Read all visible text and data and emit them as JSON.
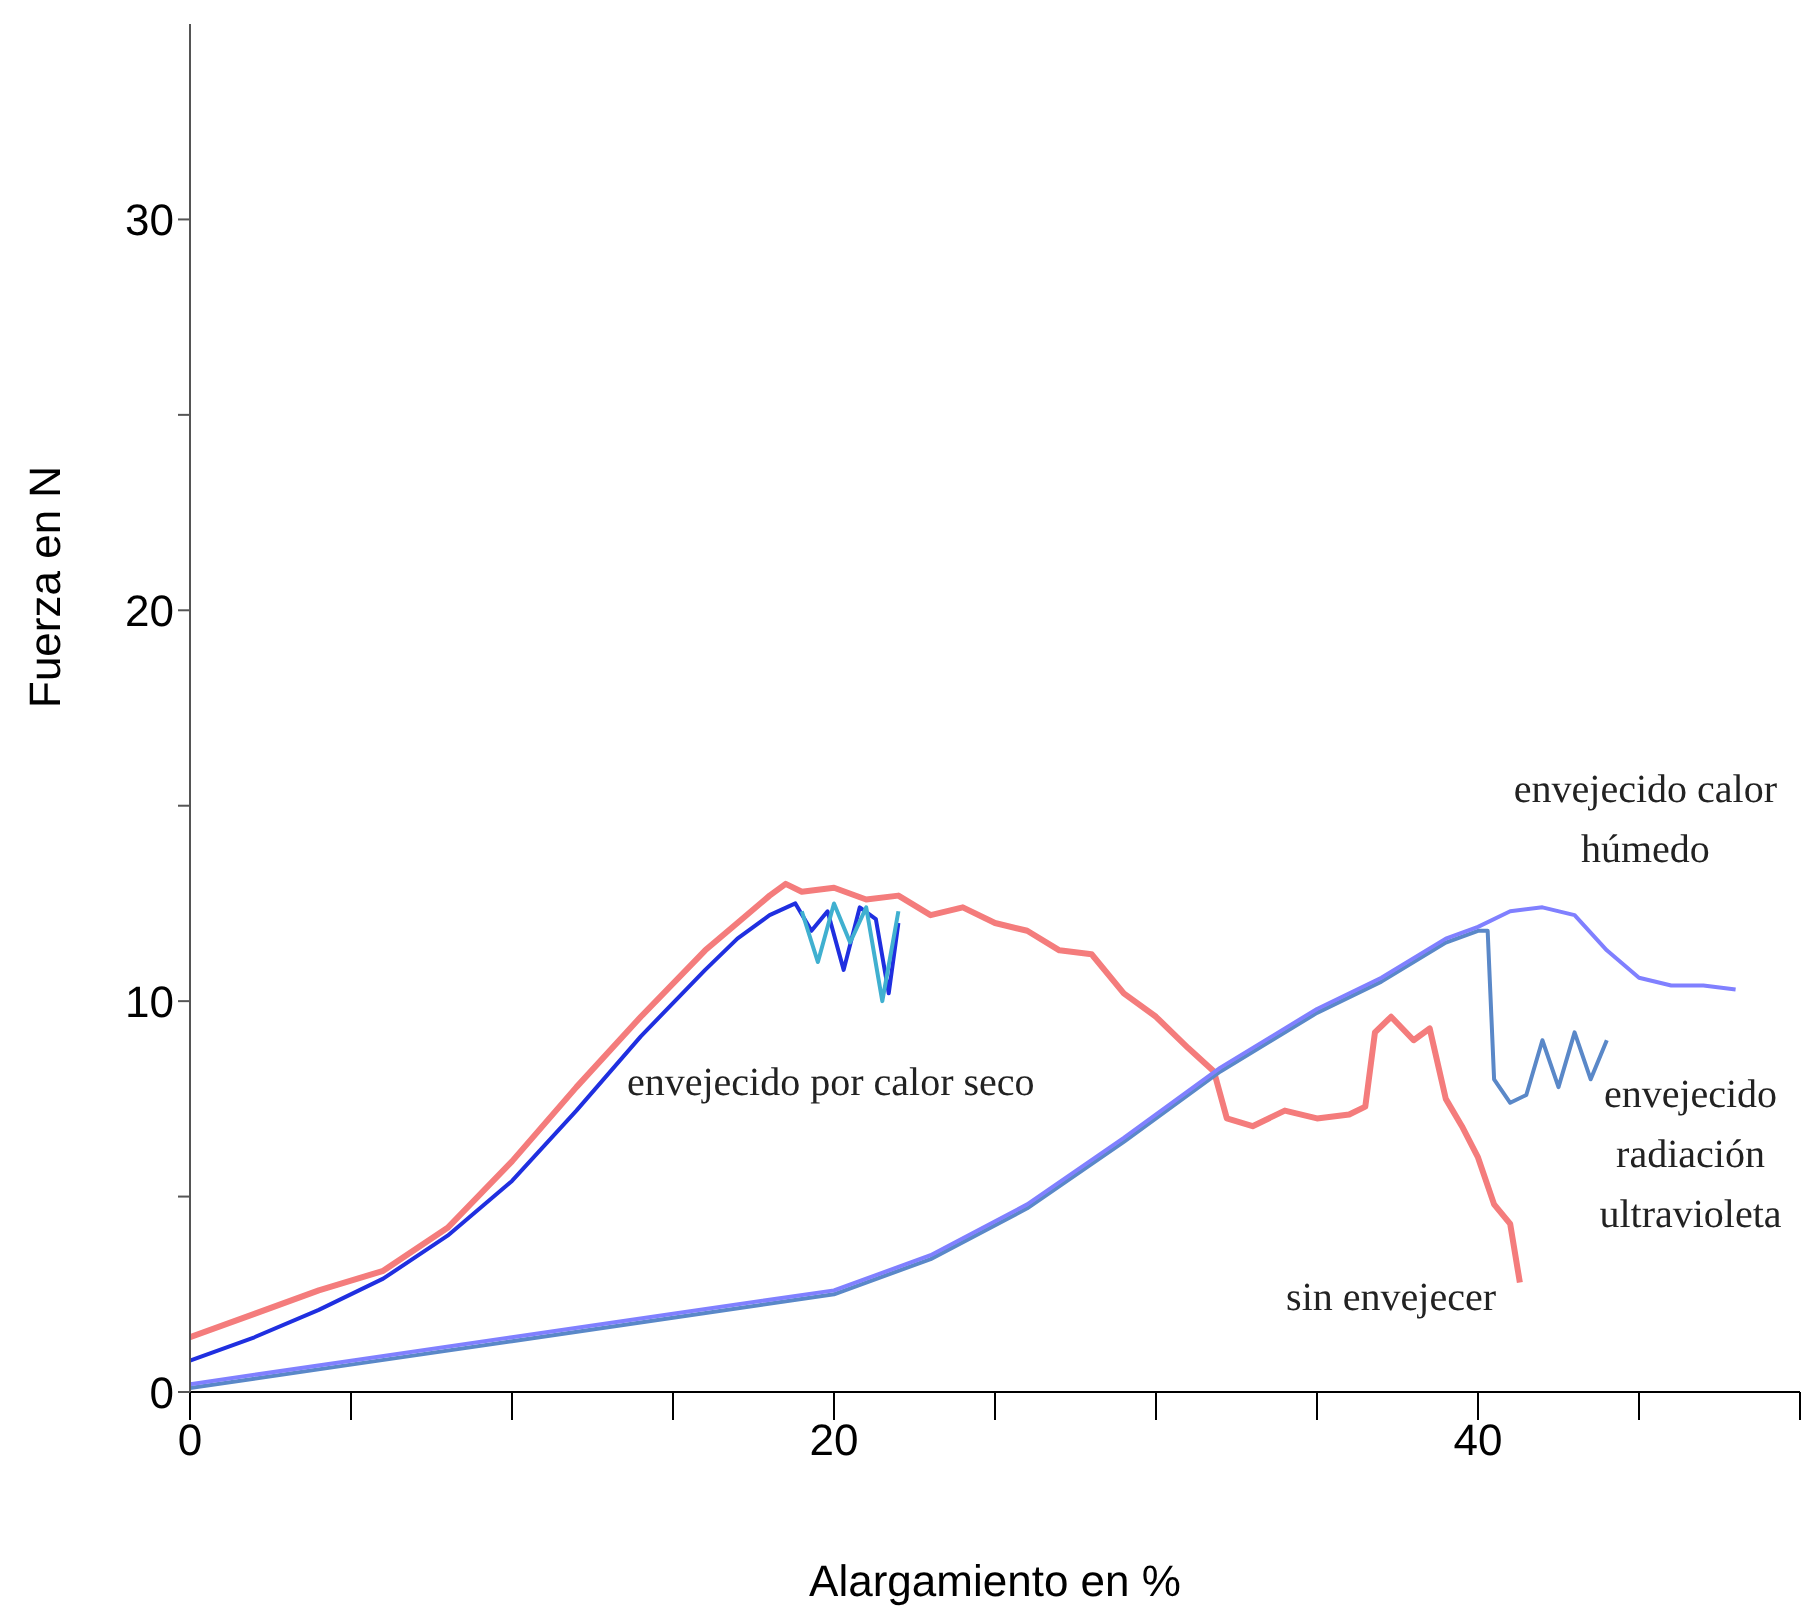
{
  "chart_data": {
    "type": "line",
    "xlabel": "Alargamiento en %",
    "ylabel": "Fuerza en N",
    "xlim": [
      0,
      50
    ],
    "xticks": [
      0,
      {
        "value": 5,
        "label": null
      },
      {
        "value": 10,
        "label": null
      },
      {
        "value": 15,
        "label": null
      },
      20,
      {
        "value": 25,
        "label": null
      },
      {
        "value": 30,
        "label": null
      },
      {
        "value": 35,
        "label": null
      },
      40,
      {
        "value": 45,
        "label": null
      },
      {
        "value": 50,
        "label": null
      }
    ],
    "ylim": [
      0,
      35
    ],
    "yticks": [
      0,
      {
        "value": 5,
        "label": null
      },
      10,
      {
        "value": 15,
        "label": null
      },
      20,
      {
        "value": 25,
        "label": null
      },
      30
    ],
    "grid": false,
    "marker": "none",
    "line_style": "solid",
    "series": [
      {
        "color": "#f47c7c",
        "x": [
          0,
          2,
          4,
          6,
          8,
          10,
          12,
          14,
          16,
          17,
          18,
          18.5,
          19,
          20,
          21,
          22,
          23,
          24,
          25,
          26,
          27,
          28,
          29,
          30,
          31,
          31.8,
          32.2,
          33,
          34,
          35,
          36,
          36.5,
          36.8,
          37.3,
          38,
          38.5,
          39,
          39.5,
          40,
          40.5,
          41,
          41.3
        ],
        "values": [
          1.4,
          2.0,
          2.6,
          3.1,
          4.2,
          5.9,
          7.8,
          9.6,
          11.3,
          12.0,
          12.7,
          13.0,
          12.8,
          12.9,
          12.6,
          12.7,
          12.2,
          12.4,
          12.0,
          11.8,
          11.3,
          11.2,
          10.2,
          9.6,
          8.8,
          8.2,
          7.0,
          6.8,
          7.2,
          7.0,
          7.1,
          7.3,
          9.2,
          9.6,
          9.0,
          9.3,
          7.5,
          6.8,
          6.0,
          4.8,
          4.3,
          2.8
        ]
      },
      {
        "color": "#1f2fe0",
        "x": [
          0,
          2,
          4,
          6,
          8,
          10,
          12,
          14,
          16,
          17,
          18,
          18.8,
          19.3,
          19.8,
          20.3,
          20.8,
          21.3,
          21.7,
          22
        ],
        "values": [
          0.8,
          1.4,
          2.1,
          2.9,
          4.0,
          5.4,
          7.2,
          9.1,
          10.8,
          11.6,
          12.2,
          12.5,
          11.8,
          12.3,
          10.8,
          12.4,
          12.1,
          10.2,
          12.0
        ]
      },
      {
        "color": "#40b0d0",
        "x": [
          19,
          19.5,
          20,
          20.5,
          21,
          21.5,
          22
        ],
        "values": [
          12.3,
          11.0,
          12.5,
          11.5,
          12.4,
          10.0,
          12.3
        ]
      },
      {
        "color": "#5a88c8",
        "x": [
          0,
          5,
          10,
          15,
          20,
          23,
          26,
          29,
          32,
          35,
          37,
          39,
          40,
          40.3,
          40.5,
          41,
          41.5,
          42,
          42.5,
          43,
          43.5,
          44
        ],
        "values": [
          0.1,
          0.7,
          1.3,
          1.9,
          2.5,
          3.4,
          4.7,
          6.4,
          8.2,
          9.7,
          10.5,
          11.5,
          11.8,
          11.8,
          8.0,
          7.4,
          7.6,
          9.0,
          7.8,
          9.2,
          8.0,
          9.0
        ]
      },
      {
        "color": "#8080ff",
        "x": [
          0,
          5,
          10,
          15,
          20,
          23,
          26,
          29,
          32,
          35,
          37,
          39,
          40,
          41,
          42,
          43,
          44,
          45,
          46,
          47,
          48
        ],
        "values": [
          0.2,
          0.8,
          1.4,
          2.0,
          2.6,
          3.5,
          4.8,
          6.5,
          8.3,
          9.8,
          10.6,
          11.6,
          11.9,
          12.3,
          12.4,
          12.2,
          11.3,
          10.6,
          10.4,
          10.4,
          10.3
        ]
      }
    ],
    "annotations": [
      "envejecido por calor seco",
      "envejecido calor húmedo",
      "sin envejecer",
      "envejecido radiación ultravioleta"
    ]
  }
}
